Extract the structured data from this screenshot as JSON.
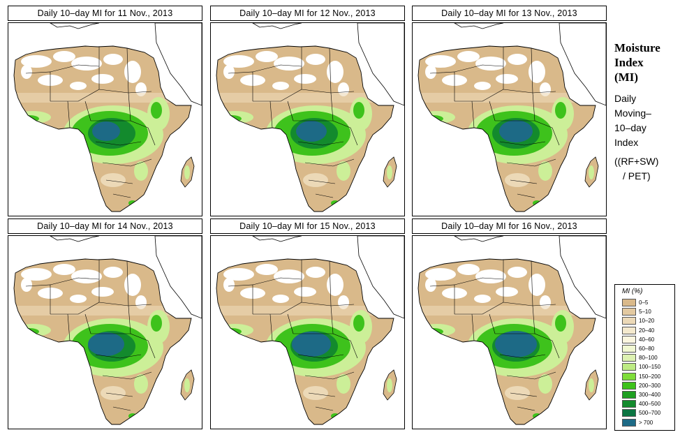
{
  "panels": [
    {
      "title": "Daily 10–day MI for  11 Nov., 2013",
      "variant": 0
    },
    {
      "title": "Daily 10–day MI for  12 Nov., 2013",
      "variant": 1
    },
    {
      "title": "Daily 10–day MI for  13 Nov., 2013",
      "variant": 2
    },
    {
      "title": "Daily 10–day MI for  14 Nov., 2013",
      "variant": 3
    },
    {
      "title": "Daily 10–day MI for  15 Nov., 2013",
      "variant": 4
    },
    {
      "title": "Daily 10–day MI for  16 Nov., 2013",
      "variant": 5
    }
  ],
  "side": {
    "title_lines": [
      "Moisture",
      "Index",
      "(MI)"
    ],
    "desc_lines": [
      "Daily",
      "Moving–",
      "10–day",
      "Index"
    ],
    "formula_lines": [
      "((RF+SW)",
      "/ PET)"
    ]
  },
  "legend": {
    "title": "MI (%)",
    "items": [
      {
        "label": "0–5",
        "color": "#d9b98a"
      },
      {
        "label": "5–10",
        "color": "#e3c9a0"
      },
      {
        "label": "10–20",
        "color": "#ecd9b7"
      },
      {
        "label": "20–40",
        "color": "#f4e9cd"
      },
      {
        "label": "40–60",
        "color": "#fbf6df"
      },
      {
        "label": "60–80",
        "color": "#f1f8d2"
      },
      {
        "label": "80–100",
        "color": "#ddf2b2"
      },
      {
        "label": "100–150",
        "color": "#bdeb84"
      },
      {
        "label": "150–200",
        "color": "#7fdd3a"
      },
      {
        "label": "200–300",
        "color": "#3ec21c"
      },
      {
        "label": "300–400",
        "color": "#1fa022"
      },
      {
        "label": "400–500",
        "color": "#138a2d"
      },
      {
        "label": "500–700",
        "color": "#0b7542"
      },
      {
        "label": "> 700",
        "color": "#1d6a86"
      }
    ]
  },
  "colors": {
    "land": "#d9b98a",
    "dry_white": "#ffffff",
    "light_tan": "#ecd9b7",
    "pale_green": "#ccef98",
    "green": "#3ec21c",
    "dark_green": "#138a2d",
    "teal": "#1d6a86",
    "border": "#000000"
  }
}
